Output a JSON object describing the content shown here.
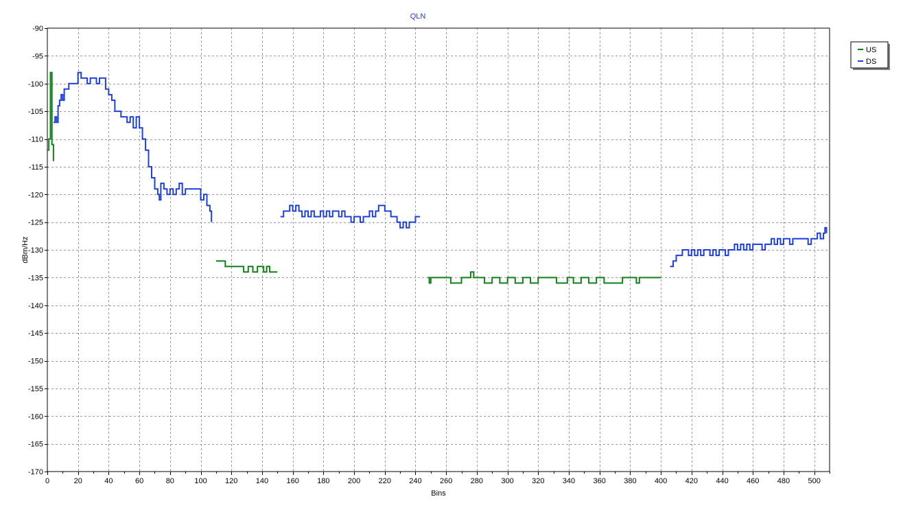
{
  "chart_data": {
    "type": "line",
    "title": "QLN",
    "xlabel": "Bins",
    "ylabel": "dBm/Hz",
    "xlim": [
      0,
      510
    ],
    "ylim": [
      -170,
      -90
    ],
    "x_ticks": [
      0,
      20,
      40,
      60,
      80,
      100,
      120,
      140,
      160,
      180,
      200,
      220,
      240,
      260,
      280,
      300,
      320,
      340,
      360,
      380,
      400,
      420,
      440,
      460,
      480,
      500
    ],
    "x_minor_step": 10,
    "y_ticks": [
      -90,
      -95,
      -100,
      -105,
      -110,
      -115,
      -120,
      -125,
      -130,
      -135,
      -140,
      -145,
      -150,
      -155,
      -160,
      -165,
      -170
    ],
    "grid": true,
    "legend_position": "top-right",
    "colors": {
      "title": "#1a3adc",
      "US": "#118019",
      "DS": "#1d3fe0",
      "grid": "#9a9a9a"
    },
    "series": [
      {
        "name": "US",
        "segments": [
          [
            [
              0,
              -112
            ],
            [
              1,
              -110
            ],
            [
              2,
              -98
            ],
            [
              3,
              -111
            ],
            [
              4,
              -114
            ]
          ],
          [
            [
              110,
              -132
            ],
            [
              114,
              -132
            ],
            [
              116,
              -133
            ],
            [
              125,
              -133
            ],
            [
              128,
              -134
            ],
            [
              131,
              -133
            ],
            [
              134,
              -134
            ],
            [
              137,
              -133
            ],
            [
              141,
              -134
            ],
            [
              143,
              -133
            ],
            [
              145,
              -134
            ],
            [
              150,
              -134
            ]
          ],
          [
            [
              248,
              -135
            ],
            [
              249,
              -136
            ],
            [
              250,
              -135
            ],
            [
              262,
              -135
            ],
            [
              263,
              -136
            ],
            [
              270,
              -135
            ],
            [
              274,
              -135
            ],
            [
              276,
              -134
            ],
            [
              278,
              -135
            ],
            [
              283,
              -135
            ],
            [
              285,
              -136
            ],
            [
              290,
              -135
            ],
            [
              295,
              -136
            ],
            [
              300,
              -135
            ],
            [
              305,
              -136
            ],
            [
              310,
              -135
            ],
            [
              315,
              -136
            ],
            [
              320,
              -135
            ],
            [
              330,
              -135
            ],
            [
              332,
              -136
            ],
            [
              339,
              -135
            ],
            [
              343,
              -136
            ],
            [
              348,
              -135
            ],
            [
              353,
              -136
            ],
            [
              358,
              -135
            ],
            [
              363,
              -136
            ],
            [
              370,
              -136
            ],
            [
              375,
              -135
            ],
            [
              382,
              -135
            ],
            [
              384,
              -136
            ],
            [
              386,
              -135
            ],
            [
              400,
              -135
            ]
          ]
        ]
      },
      {
        "name": "DS",
        "segments": [
          [
            [
              4,
              -107
            ],
            [
              5,
              -106
            ],
            [
              6,
              -107
            ],
            [
              7,
              -104
            ],
            [
              8,
              -103
            ],
            [
              9,
              -102
            ],
            [
              10,
              -103
            ],
            [
              11,
              -101
            ],
            [
              12,
              -101
            ],
            [
              14,
              -100
            ],
            [
              16,
              -100
            ],
            [
              18,
              -100
            ],
            [
              20,
              -98
            ],
            [
              22,
              -99
            ],
            [
              24,
              -99
            ],
            [
              26,
              -100
            ],
            [
              28,
              -99
            ],
            [
              30,
              -99
            ],
            [
              32,
              -100
            ],
            [
              34,
              -99
            ],
            [
              36,
              -99
            ],
            [
              38,
              -101
            ],
            [
              40,
              -102
            ],
            [
              42,
              -103
            ],
            [
              44,
              -105
            ],
            [
              46,
              -105
            ],
            [
              48,
              -106
            ],
            [
              50,
              -106
            ],
            [
              52,
              -107
            ],
            [
              54,
              -106
            ],
            [
              56,
              -108
            ],
            [
              58,
              -106
            ],
            [
              60,
              -108
            ],
            [
              62,
              -110
            ],
            [
              64,
              -112
            ],
            [
              66,
              -115
            ],
            [
              68,
              -117
            ],
            [
              70,
              -119
            ],
            [
              72,
              -120
            ],
            [
              73,
              -121
            ],
            [
              74,
              -118
            ],
            [
              76,
              -119
            ],
            [
              78,
              -120
            ],
            [
              80,
              -119
            ],
            [
              82,
              -120
            ],
            [
              84,
              -119
            ],
            [
              86,
              -118
            ],
            [
              88,
              -120
            ],
            [
              90,
              -119
            ],
            [
              92,
              -119
            ],
            [
              94,
              -119
            ],
            [
              96,
              -119
            ],
            [
              98,
              -119
            ],
            [
              100,
              -121
            ],
            [
              102,
              -120
            ],
            [
              104,
              -122
            ],
            [
              106,
              -123
            ],
            [
              107,
              -125
            ]
          ],
          [
            [
              152,
              -124
            ],
            [
              154,
              -123
            ],
            [
              156,
              -123
            ],
            [
              158,
              -122
            ],
            [
              160,
              -123
            ],
            [
              162,
              -122
            ],
            [
              164,
              -123
            ],
            [
              166,
              -124
            ],
            [
              168,
              -123
            ],
            [
              170,
              -124
            ],
            [
              172,
              -123
            ],
            [
              174,
              -124
            ],
            [
              176,
              -124
            ],
            [
              178,
              -123
            ],
            [
              180,
              -124
            ],
            [
              182,
              -123
            ],
            [
              184,
              -124
            ],
            [
              186,
              -123
            ],
            [
              188,
              -123
            ],
            [
              190,
              -124
            ],
            [
              192,
              -123
            ],
            [
              194,
              -124
            ],
            [
              196,
              -124
            ],
            [
              198,
              -125
            ],
            [
              200,
              -124
            ],
            [
              202,
              -124
            ],
            [
              204,
              -125
            ],
            [
              206,
              -124
            ],
            [
              208,
              -124
            ],
            [
              210,
              -123
            ],
            [
              212,
              -124
            ],
            [
              214,
              -123
            ],
            [
              216,
              -122
            ],
            [
              218,
              -122
            ],
            [
              220,
              -123
            ],
            [
              222,
              -123
            ],
            [
              224,
              -124
            ],
            [
              226,
              -124
            ],
            [
              228,
              -125
            ],
            [
              230,
              -126
            ],
            [
              232,
              -125
            ],
            [
              234,
              -126
            ],
            [
              236,
              -125
            ],
            [
              238,
              -125
            ],
            [
              240,
              -124
            ],
            [
              242,
              -124
            ],
            [
              243,
              -124
            ]
          ],
          [
            [
              406,
              -133
            ],
            [
              408,
              -132
            ],
            [
              410,
              -131
            ],
            [
              412,
              -131
            ],
            [
              414,
              -130
            ],
            [
              416,
              -130
            ],
            [
              418,
              -131
            ],
            [
              420,
              -130
            ],
            [
              422,
              -131
            ],
            [
              424,
              -130
            ],
            [
              426,
              -131
            ],
            [
              428,
              -130
            ],
            [
              430,
              -130
            ],
            [
              432,
              -131
            ],
            [
              434,
              -130
            ],
            [
              436,
              -131
            ],
            [
              438,
              -130
            ],
            [
              440,
              -130
            ],
            [
              442,
              -131
            ],
            [
              444,
              -130
            ],
            [
              446,
              -130
            ],
            [
              448,
              -129
            ],
            [
              450,
              -130
            ],
            [
              452,
              -129
            ],
            [
              454,
              -130
            ],
            [
              456,
              -129
            ],
            [
              458,
              -130
            ],
            [
              460,
              -129
            ],
            [
              462,
              -129
            ],
            [
              464,
              -129
            ],
            [
              466,
              -130
            ],
            [
              468,
              -129
            ],
            [
              470,
              -129
            ],
            [
              472,
              -128
            ],
            [
              474,
              -129
            ],
            [
              476,
              -128
            ],
            [
              478,
              -129
            ],
            [
              480,
              -128
            ],
            [
              482,
              -128
            ],
            [
              484,
              -129
            ],
            [
              486,
              -128
            ],
            [
              488,
              -128
            ],
            [
              490,
              -128
            ],
            [
              492,
              -128
            ],
            [
              494,
              -128
            ],
            [
              496,
              -129
            ],
            [
              498,
              -128
            ],
            [
              500,
              -128
            ],
            [
              502,
              -127
            ],
            [
              504,
              -128
            ],
            [
              506,
              -127
            ],
            [
              507,
              -126
            ],
            [
              508,
              -127
            ]
          ]
        ]
      }
    ]
  }
}
